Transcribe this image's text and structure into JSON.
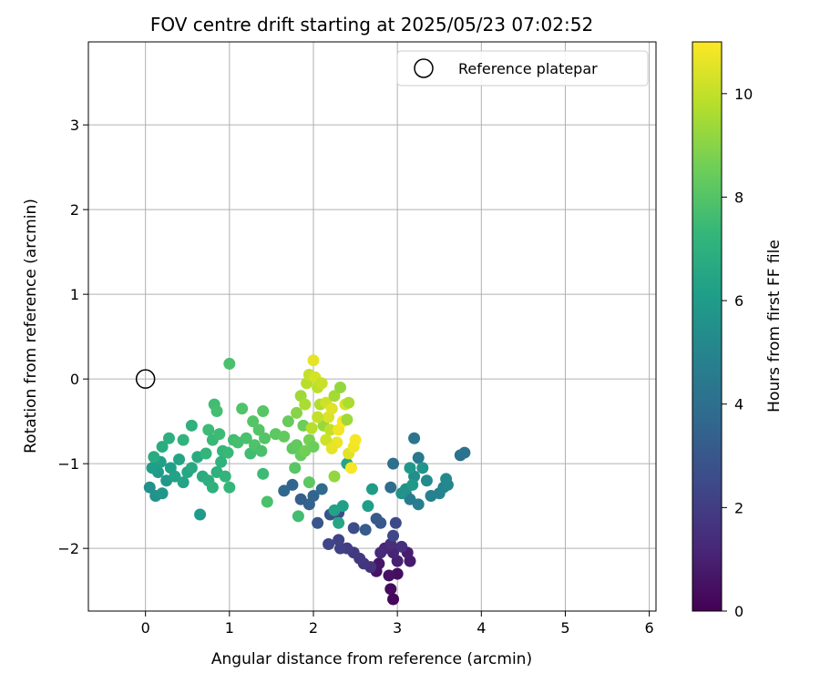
{
  "chart_data": {
    "type": "scatter",
    "title": "FOV centre drift starting at 2025/05/23 07:02:52",
    "xlabel": "Angular distance from reference (arcmin)",
    "ylabel": "Rotation from reference (arcmin)",
    "xlim": [
      -0.68,
      6.08
    ],
    "ylim": [
      -2.74,
      3.98
    ],
    "xticks": [
      0,
      1,
      2,
      3,
      4,
      5,
      6
    ],
    "yticks": [
      -2,
      -1,
      0,
      1,
      2,
      3
    ],
    "grid": true,
    "legend": {
      "position": "top-right",
      "entries": [
        {
          "label": "Reference platepar",
          "marker": "open-circle"
        }
      ]
    },
    "reference_point": {
      "x": 0,
      "y": 0,
      "name": "Reference platepar"
    },
    "colorbar": {
      "label": "Hours from first FF file",
      "min": 0,
      "max": 11,
      "ticks": [
        0,
        2,
        4,
        6,
        8,
        10
      ],
      "colormap": "viridis"
    },
    "colormap_stops": [
      "#440154",
      "#482878",
      "#3e4989",
      "#31688e",
      "#26828e",
      "#1f9e89",
      "#35b779",
      "#6ece58",
      "#b5de2b",
      "#fde725"
    ],
    "points": [
      {
        "x": 2.95,
        "y": -2.6,
        "h": 0.2
      },
      {
        "x": 2.92,
        "y": -2.48,
        "h": 0.3
      },
      {
        "x": 3.0,
        "y": -2.3,
        "h": 0.4
      },
      {
        "x": 2.9,
        "y": -2.32,
        "h": 0.5
      },
      {
        "x": 2.75,
        "y": -2.27,
        "h": 0.6
      },
      {
        "x": 2.78,
        "y": -2.18,
        "h": 0.7
      },
      {
        "x": 3.15,
        "y": -2.15,
        "h": 0.8
      },
      {
        "x": 3.12,
        "y": -2.05,
        "h": 0.9
      },
      {
        "x": 3.0,
        "y": -2.15,
        "h": 1.0
      },
      {
        "x": 2.95,
        "y": -2.05,
        "h": 1.1
      },
      {
        "x": 2.85,
        "y": -2.0,
        "h": 1.2
      },
      {
        "x": 2.8,
        "y": -2.05,
        "h": 1.3
      },
      {
        "x": 2.92,
        "y": -1.95,
        "h": 1.4
      },
      {
        "x": 3.05,
        "y": -1.98,
        "h": 1.5
      },
      {
        "x": 2.68,
        "y": -2.22,
        "h": 1.6
      },
      {
        "x": 2.6,
        "y": -2.18,
        "h": 1.7
      },
      {
        "x": 2.55,
        "y": -2.12,
        "h": 1.8
      },
      {
        "x": 2.48,
        "y": -2.05,
        "h": 1.9
      },
      {
        "x": 2.4,
        "y": -2.0,
        "h": 2.0
      },
      {
        "x": 2.32,
        "y": -2.0,
        "h": 2.1
      },
      {
        "x": 2.3,
        "y": -1.9,
        "h": 2.2
      },
      {
        "x": 2.18,
        "y": -1.95,
        "h": 2.3
      },
      {
        "x": 2.95,
        "y": -1.85,
        "h": 2.4
      },
      {
        "x": 2.98,
        "y": -1.7,
        "h": 2.5
      },
      {
        "x": 2.48,
        "y": -1.76,
        "h": 2.6
      },
      {
        "x": 2.3,
        "y": -1.58,
        "h": 2.7
      },
      {
        "x": 2.2,
        "y": -1.6,
        "h": 2.8
      },
      {
        "x": 2.05,
        "y": -1.7,
        "h": 2.9
      },
      {
        "x": 2.8,
        "y": -1.7,
        "h": 3.0
      },
      {
        "x": 2.75,
        "y": -1.65,
        "h": 3.1
      },
      {
        "x": 2.62,
        "y": -1.78,
        "h": 3.2
      },
      {
        "x": 1.85,
        "y": -1.42,
        "h": 3.3
      },
      {
        "x": 1.95,
        "y": -1.48,
        "h": 3.4
      },
      {
        "x": 2.0,
        "y": -1.38,
        "h": 3.5
      },
      {
        "x": 1.75,
        "y": -1.25,
        "h": 3.6
      },
      {
        "x": 1.65,
        "y": -1.32,
        "h": 3.7
      },
      {
        "x": 2.1,
        "y": -1.3,
        "h": 3.8
      },
      {
        "x": 2.92,
        "y": -1.28,
        "h": 3.9
      },
      {
        "x": 2.95,
        "y": -1.0,
        "h": 4.0
      },
      {
        "x": 3.75,
        "y": -0.9,
        "h": 4.1
      },
      {
        "x": 3.8,
        "y": -0.87,
        "h": 4.2
      },
      {
        "x": 3.2,
        "y": -0.7,
        "h": 4.3
      },
      {
        "x": 3.25,
        "y": -0.93,
        "h": 4.4
      },
      {
        "x": 3.1,
        "y": -1.35,
        "h": 4.5
      },
      {
        "x": 3.15,
        "y": -1.42,
        "h": 4.6
      },
      {
        "x": 3.25,
        "y": -1.48,
        "h": 4.7
      },
      {
        "x": 3.4,
        "y": -1.38,
        "h": 4.8
      },
      {
        "x": 3.5,
        "y": -1.35,
        "h": 4.9
      },
      {
        "x": 3.55,
        "y": -1.28,
        "h": 5.0
      },
      {
        "x": 3.6,
        "y": -1.25,
        "h": 5.1
      },
      {
        "x": 3.58,
        "y": -1.18,
        "h": 5.2
      },
      {
        "x": 3.35,
        "y": -1.2,
        "h": 5.3
      },
      {
        "x": 3.2,
        "y": -1.15,
        "h": 5.4
      },
      {
        "x": 3.1,
        "y": -1.3,
        "h": 5.5
      },
      {
        "x": 3.05,
        "y": -1.35,
        "h": 5.6
      },
      {
        "x": 3.3,
        "y": -1.05,
        "h": 5.7
      },
      {
        "x": 3.15,
        "y": -1.05,
        "h": 5.8
      },
      {
        "x": 3.18,
        "y": -1.25,
        "h": 5.9
      },
      {
        "x": 2.7,
        "y": -1.3,
        "h": 6.0
      },
      {
        "x": 2.65,
        "y": -1.5,
        "h": 6.1
      },
      {
        "x": 2.35,
        "y": -1.5,
        "h": 6.2
      },
      {
        "x": 2.25,
        "y": -1.55,
        "h": 6.3
      },
      {
        "x": 2.4,
        "y": -1.0,
        "h": 6.4
      },
      {
        "x": 2.3,
        "y": -1.7,
        "h": 6.5
      },
      {
        "x": 0.05,
        "y": -1.28,
        "h": 5.5
      },
      {
        "x": 0.12,
        "y": -1.38,
        "h": 5.6
      },
      {
        "x": 0.2,
        "y": -1.35,
        "h": 5.8
      },
      {
        "x": 0.25,
        "y": -1.2,
        "h": 5.9
      },
      {
        "x": 0.15,
        "y": -1.1,
        "h": 6.0
      },
      {
        "x": 0.08,
        "y": -1.05,
        "h": 6.1
      },
      {
        "x": 0.18,
        "y": -0.98,
        "h": 6.2
      },
      {
        "x": 0.3,
        "y": -1.05,
        "h": 6.2
      },
      {
        "x": 0.35,
        "y": -1.15,
        "h": 6.3
      },
      {
        "x": 0.4,
        "y": -0.95,
        "h": 6.4
      },
      {
        "x": 0.45,
        "y": -1.22,
        "h": 6.4
      },
      {
        "x": 0.5,
        "y": -1.1,
        "h": 6.5
      },
      {
        "x": 0.55,
        "y": -1.05,
        "h": 6.6
      },
      {
        "x": 0.62,
        "y": -0.92,
        "h": 6.7
      },
      {
        "x": 0.68,
        "y": -1.15,
        "h": 6.8
      },
      {
        "x": 0.75,
        "y": -1.2,
        "h": 6.9
      },
      {
        "x": 0.8,
        "y": -1.28,
        "h": 7.0
      },
      {
        "x": 0.85,
        "y": -1.1,
        "h": 7.0
      },
      {
        "x": 0.9,
        "y": -0.98,
        "h": 7.1
      },
      {
        "x": 0.95,
        "y": -1.15,
        "h": 7.2
      },
      {
        "x": 1.0,
        "y": -1.28,
        "h": 7.3
      },
      {
        "x": 0.65,
        "y": -1.6,
        "h": 6.0
      },
      {
        "x": 0.55,
        "y": -0.55,
        "h": 7.0
      },
      {
        "x": 0.2,
        "y": -0.8,
        "h": 6.8
      },
      {
        "x": 0.28,
        "y": -0.7,
        "h": 6.9
      },
      {
        "x": 0.1,
        "y": -0.92,
        "h": 6.7
      },
      {
        "x": 0.45,
        "y": -0.72,
        "h": 7.1
      },
      {
        "x": 0.72,
        "y": -0.88,
        "h": 7.2
      },
      {
        "x": 0.8,
        "y": -0.72,
        "h": 7.4
      },
      {
        "x": 0.75,
        "y": -0.6,
        "h": 7.5
      },
      {
        "x": 0.82,
        "y": -0.3,
        "h": 7.6
      },
      {
        "x": 0.85,
        "y": -0.38,
        "h": 7.7
      },
      {
        "x": 0.88,
        "y": -0.65,
        "h": 7.5
      },
      {
        "x": 0.92,
        "y": -0.85,
        "h": 7.3
      },
      {
        "x": 0.98,
        "y": -0.87,
        "h": 7.4
      },
      {
        "x": 1.0,
        "y": 0.18,
        "h": 7.8
      },
      {
        "x": 1.05,
        "y": -0.72,
        "h": 7.6
      },
      {
        "x": 1.1,
        "y": -0.75,
        "h": 7.7
      },
      {
        "x": 1.15,
        "y": -0.35,
        "h": 7.9
      },
      {
        "x": 1.2,
        "y": -0.7,
        "h": 7.8
      },
      {
        "x": 1.25,
        "y": -0.88,
        "h": 7.6
      },
      {
        "x": 1.28,
        "y": -0.5,
        "h": 8.0
      },
      {
        "x": 1.3,
        "y": -0.78,
        "h": 7.9
      },
      {
        "x": 1.35,
        "y": -0.6,
        "h": 8.0
      },
      {
        "x": 1.38,
        "y": -0.85,
        "h": 7.8
      },
      {
        "x": 1.4,
        "y": -0.38,
        "h": 8.1
      },
      {
        "x": 1.42,
        "y": -0.7,
        "h": 8.0
      },
      {
        "x": 1.4,
        "y": -1.12,
        "h": 7.5
      },
      {
        "x": 1.45,
        "y": -1.45,
        "h": 7.8
      },
      {
        "x": 1.55,
        "y": -0.65,
        "h": 8.2
      },
      {
        "x": 1.65,
        "y": -0.68,
        "h": 8.3
      },
      {
        "x": 1.7,
        "y": -0.5,
        "h": 8.4
      },
      {
        "x": 1.75,
        "y": -0.82,
        "h": 8.2
      },
      {
        "x": 1.8,
        "y": -0.78,
        "h": 8.3
      },
      {
        "x": 1.78,
        "y": -1.05,
        "h": 8.1
      },
      {
        "x": 1.82,
        "y": -1.62,
        "h": 7.6
      },
      {
        "x": 1.85,
        "y": -0.9,
        "h": 8.4
      },
      {
        "x": 1.88,
        "y": -0.55,
        "h": 8.5
      },
      {
        "x": 1.9,
        "y": -0.85,
        "h": 8.6
      },
      {
        "x": 1.95,
        "y": -0.72,
        "h": 8.7
      },
      {
        "x": 2.0,
        "y": -0.8,
        "h": 8.5
      },
      {
        "x": 1.95,
        "y": -1.22,
        "h": 8.2
      },
      {
        "x": 2.25,
        "y": -1.15,
        "h": 9.2
      },
      {
        "x": 1.8,
        "y": -0.4,
        "h": 9.0
      },
      {
        "x": 1.85,
        "y": -0.2,
        "h": 9.4
      },
      {
        "x": 1.9,
        "y": -0.3,
        "h": 9.6
      },
      {
        "x": 1.92,
        "y": -0.05,
        "h": 9.8
      },
      {
        "x": 1.95,
        "y": 0.05,
        "h": 10.0
      },
      {
        "x": 2.0,
        "y": 0.22,
        "h": 10.6
      },
      {
        "x": 2.02,
        "y": 0.02,
        "h": 10.3
      },
      {
        "x": 2.05,
        "y": -0.1,
        "h": 9.9
      },
      {
        "x": 2.08,
        "y": -0.3,
        "h": 9.7
      },
      {
        "x": 2.1,
        "y": -0.05,
        "h": 10.1
      },
      {
        "x": 2.12,
        "y": -0.55,
        "h": 9.3
      },
      {
        "x": 2.15,
        "y": -0.28,
        "h": 10.2
      },
      {
        "x": 2.18,
        "y": -0.45,
        "h": 10.4
      },
      {
        "x": 2.2,
        "y": -0.6,
        "h": 10.0
      },
      {
        "x": 2.22,
        "y": -0.35,
        "h": 10.5
      },
      {
        "x": 2.25,
        "y": -0.2,
        "h": 9.5
      },
      {
        "x": 2.28,
        "y": -0.75,
        "h": 10.7
      },
      {
        "x": 2.3,
        "y": -0.6,
        "h": 10.8
      },
      {
        "x": 2.32,
        "y": -0.1,
        "h": 9.2
      },
      {
        "x": 2.35,
        "y": -0.5,
        "h": 10.9
      },
      {
        "x": 2.38,
        "y": -0.3,
        "h": 10.3
      },
      {
        "x": 2.4,
        "y": -0.48,
        "h": 9.4
      },
      {
        "x": 2.42,
        "y": -0.88,
        "h": 10.5
      },
      {
        "x": 2.45,
        "y": -1.05,
        "h": 10.9
      },
      {
        "x": 2.48,
        "y": -0.8,
        "h": 10.8
      },
      {
        "x": 2.5,
        "y": -0.72,
        "h": 10.9
      },
      {
        "x": 2.42,
        "y": -0.28,
        "h": 9.6
      },
      {
        "x": 2.05,
        "y": -0.45,
        "h": 10.0
      },
      {
        "x": 1.98,
        "y": -0.58,
        "h": 9.8
      },
      {
        "x": 2.15,
        "y": -0.72,
        "h": 10.2
      },
      {
        "x": 2.22,
        "y": -0.82,
        "h": 10.6
      }
    ]
  }
}
